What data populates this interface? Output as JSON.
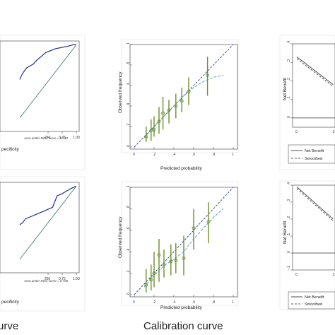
{
  "captions": {
    "left": "urve",
    "middle": "Calibration curve"
  },
  "chart_data": [
    {
      "type": "line",
      "panel": "roc-top",
      "xlabel": "pecificity",
      "x_ticks": [
        "250",
        "0.75",
        "1.00"
      ],
      "annotation": "Area under ROC curve = 0.742",
      "series": [
        {
          "role": "roc",
          "color": "#1f2f8f",
          "x": [
            0.0,
            0.03,
            0.07,
            0.12,
            0.18,
            0.24,
            0.3,
            0.38,
            0.46,
            0.55,
            0.63,
            0.72,
            0.8,
            0.88,
            0.94,
            1.0
          ],
          "y": [
            0.82,
            0.84,
            0.86,
            0.88,
            0.89,
            0.9,
            0.92,
            0.94,
            0.96,
            0.97,
            0.98,
            0.985,
            0.99,
            0.995,
            1.0,
            1.0
          ]
        },
        {
          "role": "reference",
          "color": "#3a6f6a",
          "x": [
            0.0,
            1.0
          ],
          "y": [
            0.62,
            1.0
          ]
        }
      ]
    },
    {
      "type": "line",
      "panel": "roc-bottom",
      "xlabel": "pecificity",
      "x_ticks": [
        "250",
        "0.75",
        "1.00"
      ],
      "annotation": "Area under ROC curve = 0.720",
      "series": [
        {
          "role": "roc",
          "color": "#1f2f8f",
          "x": [
            0.0,
            0.05,
            0.1,
            0.18,
            0.26,
            0.34,
            0.42,
            0.5,
            0.58,
            0.66,
            0.74,
            0.8,
            0.86,
            0.92,
            1.0
          ],
          "y": [
            0.8,
            0.81,
            0.83,
            0.84,
            0.85,
            0.86,
            0.87,
            0.88,
            0.89,
            0.95,
            0.96,
            0.97,
            0.98,
            0.99,
            1.0
          ]
        },
        {
          "role": "reference",
          "color": "#3a6f6a",
          "x": [
            0.0,
            1.0
          ],
          "y": [
            0.62,
            1.0
          ]
        }
      ]
    },
    {
      "type": "scatter",
      "panel": "calibration-top",
      "xlabel": "Predicted probability",
      "ylabel": "Observed frequency",
      "xlim": [
        0,
        1
      ],
      "ylim": [
        0,
        1
      ],
      "x_ticks": [
        "0",
        ".2",
        ".4",
        ".6",
        ".8",
        "1"
      ],
      "y_ticks": [
        "0",
        ".2",
        ".4",
        ".6",
        ".8",
        "1"
      ],
      "points": [
        {
          "x": 0.12,
          "y": 0.1,
          "lo": 0.05,
          "hi": 0.2
        },
        {
          "x": 0.17,
          "y": 0.16,
          "lo": 0.06,
          "hi": 0.27
        },
        {
          "x": 0.2,
          "y": 0.17,
          "lo": 0.1,
          "hi": 0.3
        },
        {
          "x": 0.25,
          "y": 0.25,
          "lo": 0.13,
          "hi": 0.39
        },
        {
          "x": 0.29,
          "y": 0.33,
          "lo": 0.17,
          "hi": 0.49
        },
        {
          "x": 0.35,
          "y": 0.36,
          "lo": 0.23,
          "hi": 0.46
        },
        {
          "x": 0.42,
          "y": 0.4,
          "lo": 0.28,
          "hi": 0.52
        },
        {
          "x": 0.48,
          "y": 0.45,
          "lo": 0.34,
          "hi": 0.58
        },
        {
          "x": 0.55,
          "y": 0.54,
          "lo": 0.41,
          "hi": 0.68
        },
        {
          "x": 0.74,
          "y": 0.7,
          "lo": 0.5,
          "hi": 0.88
        }
      ],
      "smoothed": {
        "x": [
          0.1,
          0.2,
          0.3,
          0.4,
          0.5,
          0.6,
          0.7,
          0.8,
          0.9
        ],
        "y": [
          0.09,
          0.2,
          0.3,
          0.4,
          0.5,
          0.58,
          0.64,
          0.68,
          0.7
        ]
      },
      "colors": {
        "points": "#6b8f2a",
        "reference": "#223a8a",
        "smoothed": "#6b9ad6"
      }
    },
    {
      "type": "scatter",
      "panel": "calibration-bottom",
      "xlabel": "Predicted probability",
      "ylabel": "Observed frequency",
      "xlim": [
        0,
        1
      ],
      "ylim": [
        0,
        1
      ],
      "x_ticks": [
        "0",
        ".2",
        ".4",
        ".6",
        ".8",
        "1"
      ],
      "y_ticks": [
        "0",
        ".2",
        ".4",
        ".6",
        ".8",
        "1"
      ],
      "points": [
        {
          "x": 0.12,
          "y": 0.09,
          "lo": 0.02,
          "hi": 0.24
        },
        {
          "x": 0.17,
          "y": 0.14,
          "lo": 0.04,
          "hi": 0.28
        },
        {
          "x": 0.2,
          "y": 0.2,
          "lo": 0.07,
          "hi": 0.4
        },
        {
          "x": 0.25,
          "y": 0.37,
          "lo": 0.12,
          "hi": 0.52
        },
        {
          "x": 0.3,
          "y": 0.28,
          "lo": 0.16,
          "hi": 0.42
        },
        {
          "x": 0.37,
          "y": 0.31,
          "lo": 0.18,
          "hi": 0.47
        },
        {
          "x": 0.42,
          "y": 0.32,
          "lo": 0.2,
          "hi": 0.48
        },
        {
          "x": 0.5,
          "y": 0.34,
          "lo": 0.18,
          "hi": 0.55
        },
        {
          "x": 0.6,
          "y": 0.62,
          "lo": 0.42,
          "hi": 0.8
        },
        {
          "x": 0.75,
          "y": 0.68,
          "lo": 0.48,
          "hi": 0.86
        }
      ],
      "smoothed": {
        "x": [
          0.1,
          0.2,
          0.3,
          0.4,
          0.5,
          0.6,
          0.7,
          0.8,
          0.9
        ],
        "y": [
          0.07,
          0.18,
          0.27,
          0.33,
          0.4,
          0.52,
          0.62,
          0.72,
          0.8
        ]
      },
      "colors": {
        "points": "#6b8f2a",
        "reference": "#223a8a",
        "smoothed": "#6b9ad6"
      }
    },
    {
      "type": "line",
      "panel": "decision-top",
      "ylabel": "Net Benefit",
      "x_ticks": [
        "0",
        ".2"
      ],
      "y_ticks": [
        "0",
        ".1",
        ".2",
        ".3",
        ".4"
      ],
      "ylim": [
        -0.05,
        0.4
      ],
      "series": [
        {
          "name": "Net Benefit",
          "x": [
            0.0,
            0.2
          ],
          "y": [
            0.33,
            0.18
          ]
        },
        {
          "name": "Smoothed",
          "x": [
            0.0,
            0.2
          ],
          "y": [
            0.32,
            0.17
          ]
        }
      ],
      "legend": [
        "Net Benefit",
        "Smoothed"
      ]
    },
    {
      "type": "line",
      "panel": "decision-bottom",
      "ylabel": "Net Benefit",
      "x_ticks": [
        "0",
        ".2"
      ],
      "y_ticks": [
        "-.1",
        "0",
        ".1",
        ".2",
        ".3",
        ".4"
      ],
      "ylim": [
        -0.1,
        0.4
      ],
      "series": [
        {
          "name": "Net Benefit",
          "x": [
            0.0,
            0.2
          ],
          "y": [
            0.39,
            0.2
          ]
        },
        {
          "name": "Smoothed",
          "x": [
            0.0,
            0.2
          ],
          "y": [
            0.38,
            0.19
          ]
        }
      ],
      "legend": [
        "Net Benefit",
        "Smoothed"
      ]
    }
  ]
}
